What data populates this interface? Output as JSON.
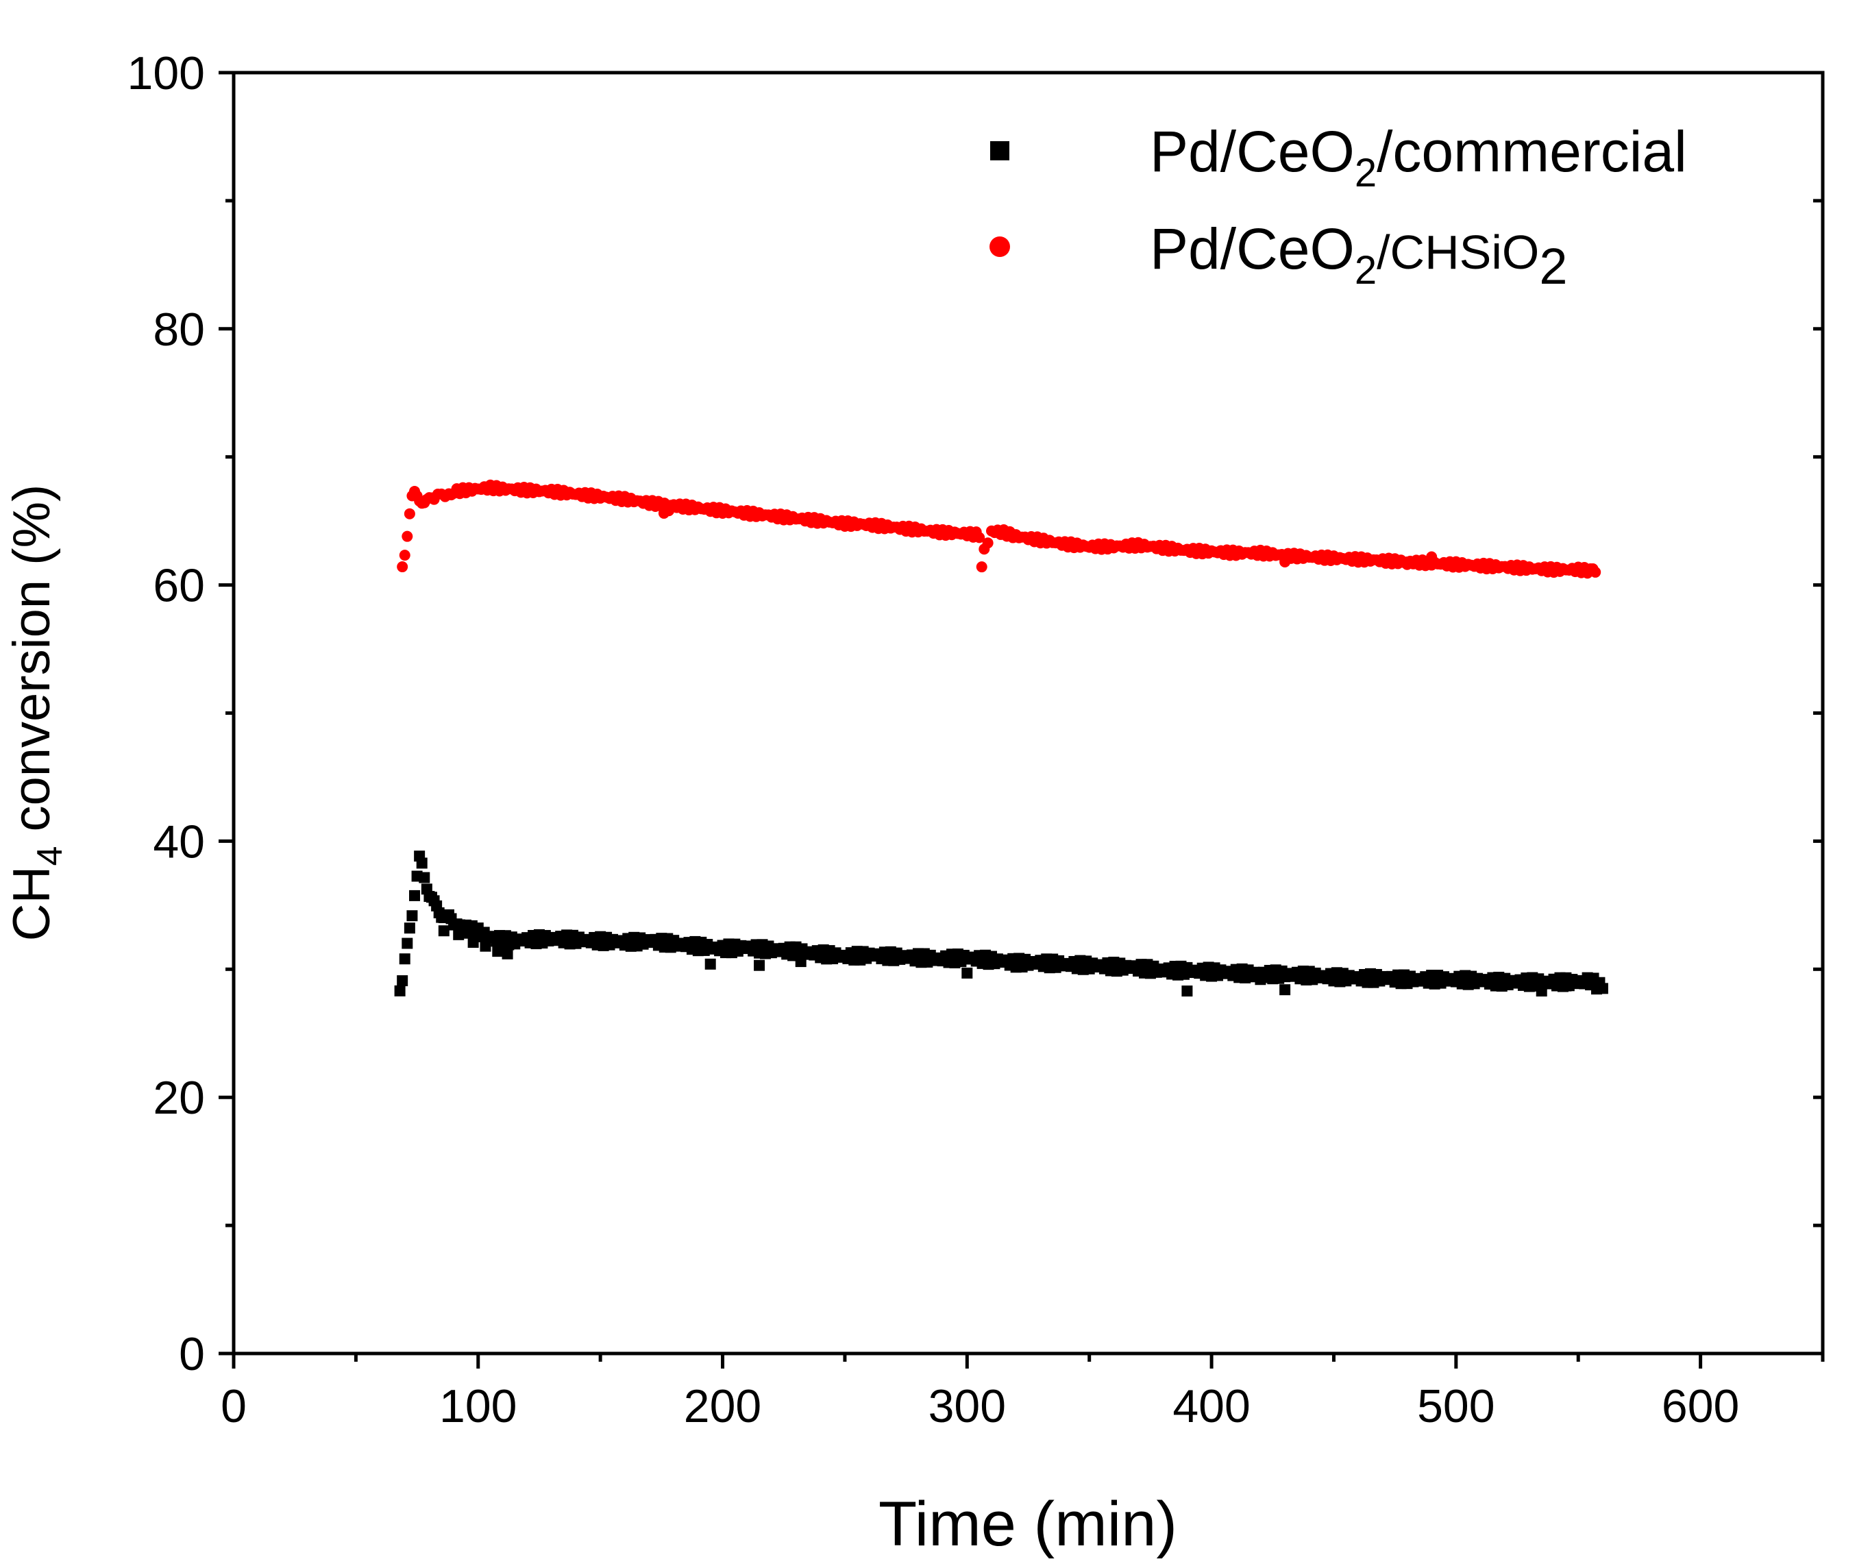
{
  "chart_data": {
    "type": "scatter",
    "title": "",
    "xlabel": "Time (min)",
    "ylabel": {
      "prefix": "CH",
      "subscript": "4",
      "suffix": " conversion (%)"
    },
    "xlim": [
      0,
      650
    ],
    "ylim": [
      0,
      100
    ],
    "x_ticks": [
      0,
      100,
      200,
      300,
      400,
      500,
      600
    ],
    "x_minor_ticks": [
      50,
      150,
      250,
      350,
      450,
      550,
      650
    ],
    "y_ticks": [
      0,
      20,
      40,
      60,
      80,
      100
    ],
    "y_minor_ticks": [
      10,
      30,
      50,
      70,
      90
    ],
    "grid": false,
    "legend_position": "top-right",
    "series": [
      {
        "name": "Pd/CeO2/commercial",
        "label_parts": {
          "a": "Pd/CeO",
          "sub1": "2",
          "b": "/commercial"
        },
        "marker": "square",
        "color": "#000000",
        "points": [
          [
            68,
            28.3
          ],
          [
            69,
            28.8
          ],
          [
            70,
            30.5
          ],
          [
            71,
            32.0
          ],
          [
            72,
            33.5
          ],
          [
            73,
            34.5
          ],
          [
            74,
            35.8
          ],
          [
            75,
            37.0
          ],
          [
            76,
            38.5
          ],
          [
            77,
            38.2
          ],
          [
            78,
            37.4
          ],
          [
            79,
            36.6
          ],
          [
            80,
            35.8
          ],
          [
            82,
            35.0
          ],
          [
            84,
            34.6
          ],
          [
            86,
            34.2
          ],
          [
            88,
            33.9
          ],
          [
            90,
            33.6
          ],
          [
            95,
            33.2
          ],
          [
            100,
            32.9
          ],
          [
            105,
            32.5
          ],
          [
            110,
            32.3
          ],
          [
            115,
            32.2
          ],
          [
            120,
            32.3
          ],
          [
            130,
            32.4
          ],
          [
            140,
            32.3
          ],
          [
            150,
            32.2
          ],
          [
            160,
            32.1
          ],
          [
            170,
            32.2
          ],
          [
            180,
            32.0
          ],
          [
            190,
            31.8
          ],
          [
            200,
            31.6
          ],
          [
            210,
            31.7
          ],
          [
            220,
            31.5
          ],
          [
            230,
            31.4
          ],
          [
            240,
            31.2
          ],
          [
            250,
            31.0
          ],
          [
            260,
            31.1
          ],
          [
            270,
            31.0
          ],
          [
            280,
            30.9
          ],
          [
            290,
            30.8
          ],
          [
            300,
            30.9
          ],
          [
            310,
            30.7
          ],
          [
            320,
            30.5
          ],
          [
            330,
            30.5
          ],
          [
            340,
            30.4
          ],
          [
            350,
            30.3
          ],
          [
            360,
            30.2
          ],
          [
            370,
            30.1
          ],
          [
            380,
            29.9
          ],
          [
            390,
            29.9
          ],
          [
            400,
            29.8
          ],
          [
            410,
            29.7
          ],
          [
            420,
            29.6
          ],
          [
            430,
            29.6
          ],
          [
            440,
            29.5
          ],
          [
            450,
            29.4
          ],
          [
            460,
            29.3
          ],
          [
            470,
            29.3
          ],
          [
            480,
            29.2
          ],
          [
            490,
            29.2
          ],
          [
            500,
            29.2
          ],
          [
            510,
            29.1
          ],
          [
            520,
            29.0
          ],
          [
            530,
            29.0
          ],
          [
            540,
            29.0
          ],
          [
            550,
            29.0
          ],
          [
            555,
            29.1
          ],
          [
            560,
            28.5
          ],
          [
            86,
            33.0
          ],
          [
            92,
            32.7
          ],
          [
            98,
            32.1
          ],
          [
            103,
            31.8
          ],
          [
            108,
            31.4
          ],
          [
            112,
            31.2
          ],
          [
            195,
            30.4
          ],
          [
            215,
            30.3
          ],
          [
            232,
            30.6
          ],
          [
            300,
            29.7
          ],
          [
            390,
            28.3
          ],
          [
            420,
            29.2
          ],
          [
            430,
            28.4
          ],
          [
            480,
            28.9
          ],
          [
            535,
            28.3
          ],
          [
            545,
            28.7
          ]
        ]
      },
      {
        "name": "Pd/CeO2/CHSiO2",
        "label_parts": {
          "a": "Pd/CeO",
          "sub1": "2",
          "b": "/CHSiO",
          "sub2": "2"
        },
        "marker": "circle",
        "color": "#ff0000",
        "points": [
          [
            69,
            61.4
          ],
          [
            70,
            62.5
          ],
          [
            71,
            64.0
          ],
          [
            72,
            65.6
          ],
          [
            73,
            66.8
          ],
          [
            74,
            67.1
          ],
          [
            75,
            66.9
          ],
          [
            76,
            66.7
          ],
          [
            78,
            66.5
          ],
          [
            80,
            66.6
          ],
          [
            82,
            66.8
          ],
          [
            85,
            67.0
          ],
          [
            88,
            67.2
          ],
          [
            90,
            67.3
          ],
          [
            95,
            67.4
          ],
          [
            100,
            67.5
          ],
          [
            105,
            67.6
          ],
          [
            110,
            67.5
          ],
          [
            120,
            67.4
          ],
          [
            130,
            67.3
          ],
          [
            140,
            67.1
          ],
          [
            150,
            66.9
          ],
          [
            160,
            66.7
          ],
          [
            170,
            66.4
          ],
          [
            180,
            66.2
          ],
          [
            190,
            66.0
          ],
          [
            200,
            65.8
          ],
          [
            210,
            65.6
          ],
          [
            220,
            65.4
          ],
          [
            230,
            65.2
          ],
          [
            240,
            65.0
          ],
          [
            250,
            64.8
          ],
          [
            260,
            64.7
          ],
          [
            270,
            64.5
          ],
          [
            280,
            64.3
          ],
          [
            290,
            64.1
          ],
          [
            300,
            64.0
          ],
          [
            305,
            63.9
          ],
          [
            306,
            61.6
          ],
          [
            307,
            62.8
          ],
          [
            310,
            64.2
          ],
          [
            315,
            64.1
          ],
          [
            320,
            63.8
          ],
          [
            330,
            63.5
          ],
          [
            340,
            63.2
          ],
          [
            350,
            63.0
          ],
          [
            360,
            63.0
          ],
          [
            370,
            63.1
          ],
          [
            380,
            62.9
          ],
          [
            390,
            62.7
          ],
          [
            400,
            62.6
          ],
          [
            410,
            62.5
          ],
          [
            420,
            62.5
          ],
          [
            430,
            62.3
          ],
          [
            440,
            62.2
          ],
          [
            450,
            62.1
          ],
          [
            460,
            62.0
          ],
          [
            470,
            61.9
          ],
          [
            480,
            61.8
          ],
          [
            490,
            61.7
          ],
          [
            500,
            61.6
          ],
          [
            510,
            61.5
          ],
          [
            520,
            61.4
          ],
          [
            530,
            61.3
          ],
          [
            540,
            61.2
          ],
          [
            550,
            61.2
          ],
          [
            555,
            61.1
          ],
          [
            557,
            61.0
          ],
          [
            176,
            65.6
          ],
          [
            178,
            65.8
          ],
          [
            430,
            61.8
          ],
          [
            480,
            61.6
          ],
          [
            490,
            62.2
          ]
        ]
      }
    ]
  }
}
